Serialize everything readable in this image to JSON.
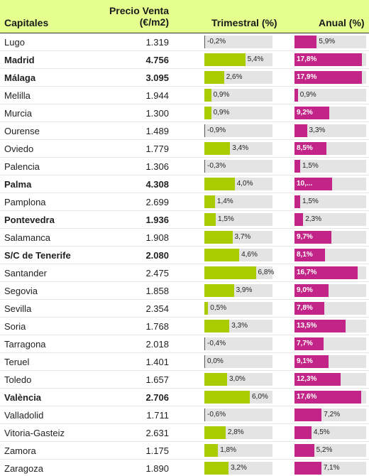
{
  "chart_data": {
    "type": "table",
    "columns": [
      "Capitales",
      "Precio Venta (€/m2)",
      "Trimestral (%)",
      "Anual (%)"
    ],
    "header_price_line1": "Precio Venta",
    "header_price_line2": "(€/m2)",
    "colors": {
      "header_bg": "#e5ff8f",
      "trimestral_bar": "#a9cc00",
      "anual_bar": "#c22587",
      "track": "#e4e4e4"
    },
    "trimestral_range": [
      0,
      9
    ],
    "anual_range": [
      0,
      19
    ],
    "rows": [
      {
        "city": "Lugo",
        "price": "1.319",
        "trimestral": -0.2,
        "trimestral_label": "-0,2%",
        "anual": 5.9,
        "anual_label": "5,9%",
        "bold": false
      },
      {
        "city": "Madrid",
        "price": "4.756",
        "trimestral": 5.4,
        "trimestral_label": "5,4%",
        "anual": 17.8,
        "anual_label": "17,8%",
        "bold": true
      },
      {
        "city": "Málaga",
        "price": "3.095",
        "trimestral": 2.6,
        "trimestral_label": "2,6%",
        "anual": 17.9,
        "anual_label": "17,9%",
        "bold": true
      },
      {
        "city": "Melilla",
        "price": "1.944",
        "trimestral": 0.9,
        "trimestral_label": "0,9%",
        "anual": 0.9,
        "anual_label": "0,9%",
        "bold": false
      },
      {
        "city": "Murcia",
        "price": "1.300",
        "trimestral": 0.9,
        "trimestral_label": "0,9%",
        "anual": 9.2,
        "anual_label": "9,2%",
        "bold": false
      },
      {
        "city": "Ourense",
        "price": "1.489",
        "trimestral": -0.9,
        "trimestral_label": "-0,9%",
        "anual": 3.3,
        "anual_label": "3,3%",
        "bold": false
      },
      {
        "city": "Oviedo",
        "price": "1.779",
        "trimestral": 3.4,
        "trimestral_label": "3,4%",
        "anual": 8.5,
        "anual_label": "8,5%",
        "bold": false
      },
      {
        "city": "Palencia",
        "price": "1.306",
        "trimestral": -0.3,
        "trimestral_label": "-0,3%",
        "anual": 1.5,
        "anual_label": "1,5%",
        "bold": false
      },
      {
        "city": "Palma",
        "price": "4.308",
        "trimestral": 4.0,
        "trimestral_label": "4,0%",
        "anual": 10.0,
        "anual_label": "10,...",
        "bold": true
      },
      {
        "city": "Pamplona",
        "price": "2.699",
        "trimestral": 1.4,
        "trimestral_label": "1,4%",
        "anual": 1.5,
        "anual_label": "1,5%",
        "bold": false
      },
      {
        "city": "Pontevedra",
        "price": "1.936",
        "trimestral": 1.5,
        "trimestral_label": "1,5%",
        "anual": 2.3,
        "anual_label": "2,3%",
        "bold": true
      },
      {
        "city": "Salamanca",
        "price": "1.908",
        "trimestral": 3.7,
        "trimestral_label": "3,7%",
        "anual": 9.7,
        "anual_label": "9,7%",
        "bold": false
      },
      {
        "city": "S/C de Tenerife",
        "price": "2.080",
        "trimestral": 4.6,
        "trimestral_label": "4,6%",
        "anual": 8.1,
        "anual_label": "8,1%",
        "bold": true
      },
      {
        "city": "Santander",
        "price": "2.475",
        "trimestral": 6.8,
        "trimestral_label": "6,8%",
        "anual": 16.7,
        "anual_label": "16,7%",
        "bold": false
      },
      {
        "city": "Segovia",
        "price": "1.858",
        "trimestral": 3.9,
        "trimestral_label": "3,9%",
        "anual": 9.0,
        "anual_label": "9,0%",
        "bold": false
      },
      {
        "city": "Sevilla",
        "price": "2.354",
        "trimestral": 0.5,
        "trimestral_label": "0,5%",
        "anual": 7.8,
        "anual_label": "7,8%",
        "bold": false
      },
      {
        "city": "Soria",
        "price": "1.768",
        "trimestral": 3.3,
        "trimestral_label": "3,3%",
        "anual": 13.5,
        "anual_label": "13,5%",
        "bold": false
      },
      {
        "city": "Tarragona",
        "price": "2.018",
        "trimestral": -0.4,
        "trimestral_label": "-0,4%",
        "anual": 7.7,
        "anual_label": "7,7%",
        "bold": false
      },
      {
        "city": "Teruel",
        "price": "1.401",
        "trimestral": 0.0,
        "trimestral_label": "0,0%",
        "anual": 9.1,
        "anual_label": "9,1%",
        "bold": false
      },
      {
        "city": "Toledo",
        "price": "1.657",
        "trimestral": 3.0,
        "trimestral_label": "3,0%",
        "anual": 12.3,
        "anual_label": "12,3%",
        "bold": false
      },
      {
        "city": "València",
        "price": "2.706",
        "trimestral": 6.0,
        "trimestral_label": "6,0%",
        "anual": 17.6,
        "anual_label": "17,6%",
        "bold": true
      },
      {
        "city": "Valladolid",
        "price": "1.711",
        "trimestral": -0.6,
        "trimestral_label": "-0,6%",
        "anual": 7.2,
        "anual_label": "7,2%",
        "bold": false
      },
      {
        "city": "Vitoria-Gasteiz",
        "price": "2.631",
        "trimestral": 2.8,
        "trimestral_label": "2,8%",
        "anual": 4.5,
        "anual_label": "4,5%",
        "bold": false
      },
      {
        "city": "Zamora",
        "price": "1.175",
        "trimestral": 1.8,
        "trimestral_label": "1,8%",
        "anual": 5.2,
        "anual_label": "5,2%",
        "bold": false
      },
      {
        "city": "Zaragoza",
        "price": "1.890",
        "trimestral": 3.2,
        "trimestral_label": "3,2%",
        "anual": 7.1,
        "anual_label": "7,1%",
        "bold": false
      }
    ]
  }
}
